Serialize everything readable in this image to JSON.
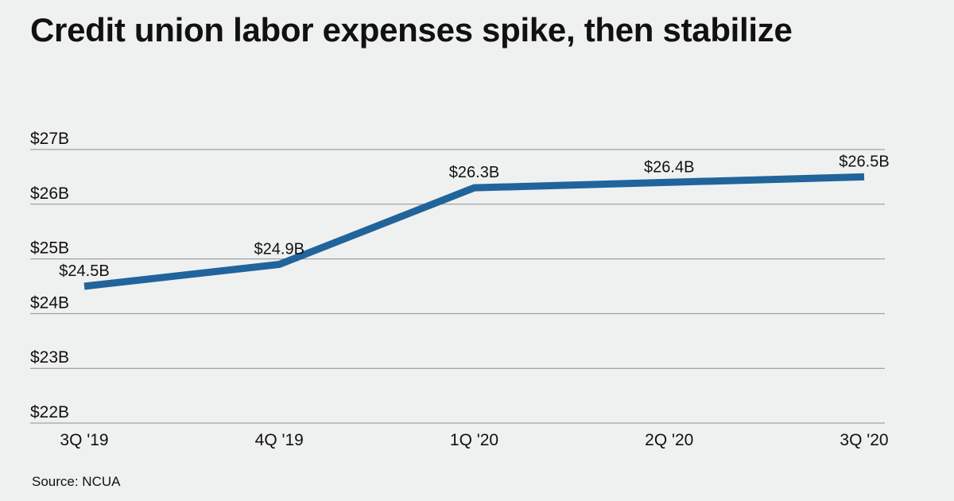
{
  "title": "Credit union labor expenses spike, then stabilize",
  "source": "Source: NCUA",
  "colors": {
    "background": "#eff1f0",
    "line": "#21649b",
    "grid": "#8e8e8e",
    "text": "#111111"
  },
  "chart_data": {
    "type": "line",
    "title": "Credit union labor expenses spike, then stabilize",
    "xlabel": "",
    "ylabel": "",
    "categories": [
      "3Q '19",
      "4Q '19",
      "1Q '20",
      "2Q '20",
      "3Q '20"
    ],
    "series": [
      {
        "name": "Labor expenses",
        "values": [
          24.5,
          24.9,
          26.3,
          26.4,
          26.5
        ],
        "labels": [
          "$24.5B",
          "$24.9B",
          "$26.3B",
          "$26.4B",
          "$26.5B"
        ]
      }
    ],
    "ylim": [
      22,
      27
    ],
    "yticks": [
      22,
      23,
      24,
      25,
      26,
      27
    ],
    "ytick_labels": [
      "$22B",
      "$23B",
      "$24B",
      "$25B",
      "$26B",
      "$27B"
    ],
    "grid": true,
    "legend": "none"
  }
}
